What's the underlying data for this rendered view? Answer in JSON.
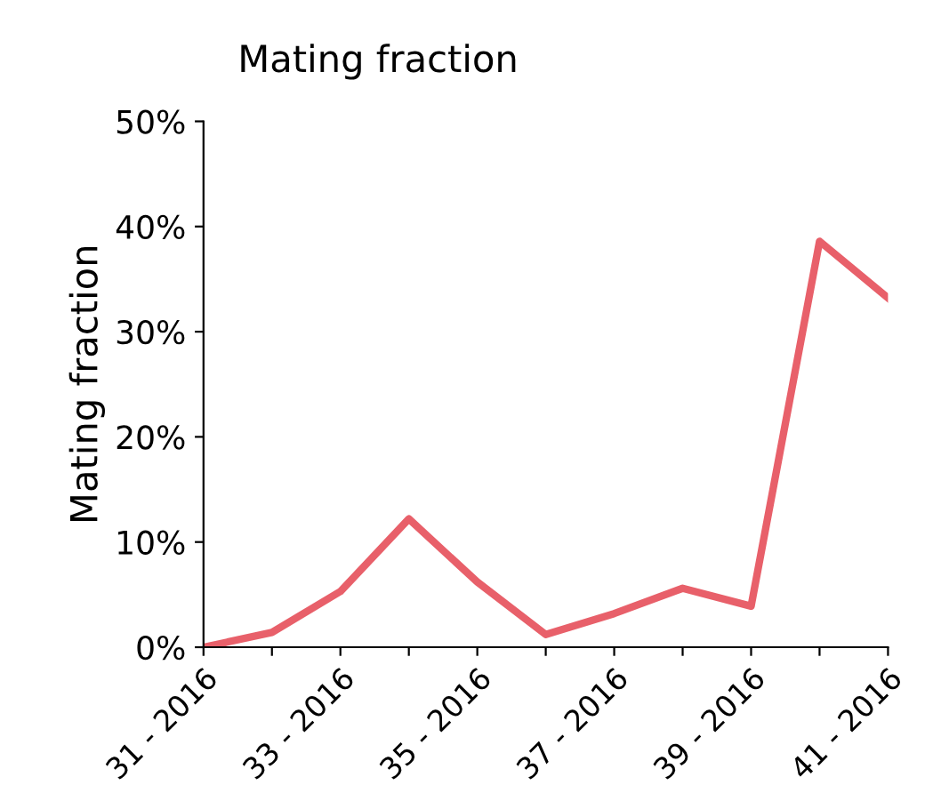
{
  "chart_data": {
    "type": "line",
    "title": "Mating fraction",
    "ylabel": "Mating fraction",
    "categories": [
      "31 - 2016",
      null,
      "33 - 2016",
      null,
      "35 - 2016",
      null,
      "37 - 2016",
      null,
      "39 - 2016",
      null,
      "41 - 2016"
    ],
    "series": [
      {
        "color": "#e8606a",
        "values": [
          0,
          1.4,
          5.3,
          12.2,
          6.2,
          1.2,
          3.2,
          5.6,
          3.9,
          38.6,
          33.2
        ]
      }
    ],
    "ylim": [
      0,
      50
    ],
    "yticks": [
      {
        "value": 0,
        "label": "0%"
      },
      {
        "value": 10,
        "label": "10%"
      },
      {
        "value": 20,
        "label": "20%"
      },
      {
        "value": 30,
        "label": "30%"
      },
      {
        "value": 40,
        "label": "40%"
      },
      {
        "value": 50,
        "label": "50%"
      }
    ],
    "grid": false,
    "legend": false,
    "marker": "none",
    "line_style": "solid"
  }
}
